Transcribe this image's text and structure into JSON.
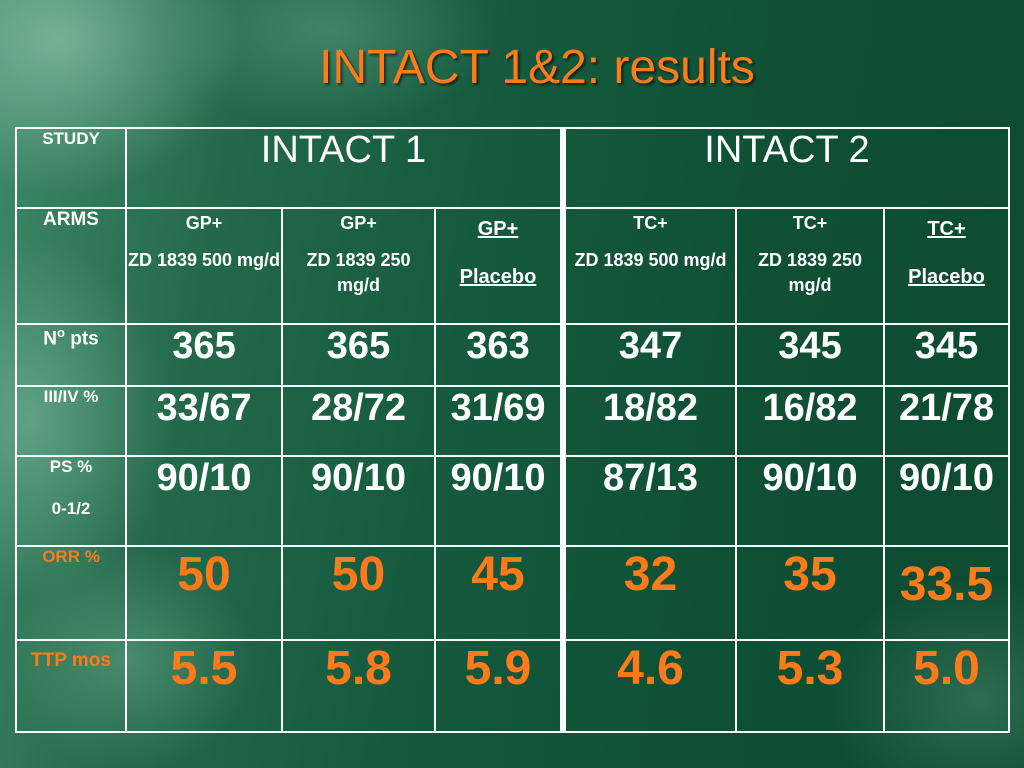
{
  "title": "INTACT 1&2: results",
  "row_labels": {
    "study": "STUDY",
    "arms": "ARMS",
    "npts_main": "N",
    "npts_sup": "o",
    "npts_rest": " pts",
    "stage": "III/IV %",
    "ps_line1": "PS %",
    "ps_line2": "0-1/2",
    "orr": "ORR %",
    "ttp": "TTP mos"
  },
  "studies": [
    "INTACT 1",
    "INTACT 2"
  ],
  "arms": [
    {
      "top": "GP+",
      "bottom": "ZD 1839 500 mg/d"
    },
    {
      "top": "GP+",
      "bottom": "ZD 1839 250 mg/d"
    },
    {
      "top": "GP+",
      "bottom": "Placebo"
    },
    {
      "top": "TC+",
      "bottom": "ZD 1839 500 mg/d"
    },
    {
      "top": "TC+",
      "bottom": "ZD 1839 250 mg/d"
    },
    {
      "top": "TC+",
      "bottom": "Placebo"
    }
  ],
  "npts": [
    "365",
    "365",
    "363",
    "347",
    "345",
    "345"
  ],
  "stage": [
    "33/67",
    "28/72",
    "31/69",
    "18/82",
    "16/82",
    "21/78"
  ],
  "ps": [
    "90/10",
    "90/10",
    "90/10",
    "87/13",
    "90/10",
    "90/10"
  ],
  "orr": [
    "50",
    "50",
    "45",
    "32",
    "35",
    "33.5"
  ],
  "ttp": [
    "5.5",
    "5.8",
    "5.9",
    "4.6",
    "5.3",
    "5.0"
  ],
  "colors": {
    "title": "#ff7a1a",
    "highlight": "#ff7a1a",
    "background": "#155a3e",
    "grid": "#ffffff"
  }
}
